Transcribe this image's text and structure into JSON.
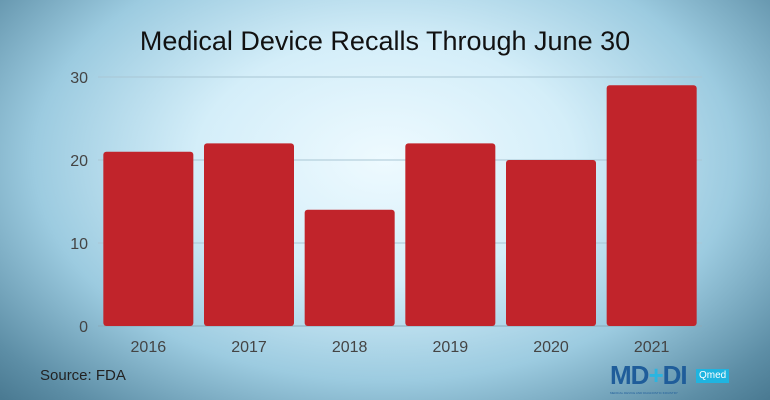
{
  "chart_data": {
    "type": "bar",
    "title": "Medical Device Recalls Through June 30",
    "categories": [
      "2016",
      "2017",
      "2018",
      "2019",
      "2020",
      "2021"
    ],
    "values": [
      21,
      22,
      14,
      22,
      20,
      29
    ],
    "xlabel": "",
    "ylabel": "",
    "ylim": [
      0,
      30
    ],
    "yticks": [
      0,
      10,
      20,
      30
    ],
    "grid": true,
    "bar_color": "#c1242b"
  },
  "source": "Source: FDA",
  "logo": {
    "main": "MD+DI",
    "badge": "Qmed",
    "tagline": "MEDICAL DEVICE AND DIAGNOSTIC INDUSTRY"
  }
}
